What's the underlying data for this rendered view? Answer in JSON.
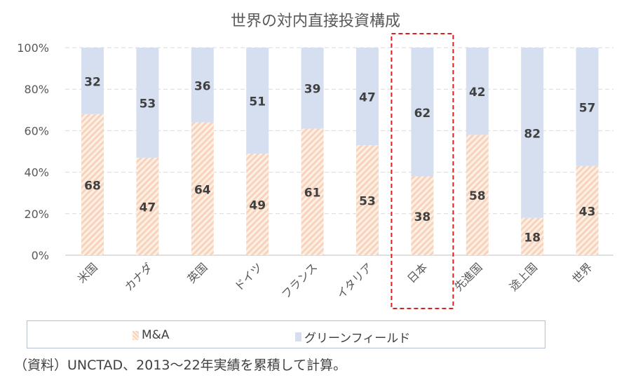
{
  "chart_data": {
    "type": "bar",
    "stacked": true,
    "title": "世界の対内直接投資構成",
    "categories": [
      "米国",
      "カナダ",
      "英国",
      "ドイツ",
      "フランス",
      "イタリア",
      "日本",
      "先進国",
      "途上国",
      "世界"
    ],
    "series": [
      {
        "name": "M&A",
        "values": [
          68,
          47,
          64,
          49,
          61,
          53,
          38,
          58,
          18,
          43
        ],
        "color": "#f8d5bf"
      },
      {
        "name": "グリーンフィールド",
        "values": [
          32,
          53,
          36,
          51,
          39,
          47,
          62,
          42,
          82,
          57
        ],
        "color": "#d6dff0"
      }
    ],
    "yticks": [
      "0%",
      "20%",
      "40%",
      "60%",
      "80%",
      "100%"
    ],
    "ylim": [
      0,
      100
    ],
    "grid": true,
    "legend": "bottom",
    "highlight": "日本"
  },
  "note": "（資料）UNCTAD、2013〜22年実績を累積して計算。"
}
